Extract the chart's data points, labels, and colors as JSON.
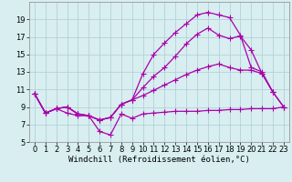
{
  "background_color": "#d8eef0",
  "grid_color": "#aacdd4",
  "line_color": "#aa00aa",
  "line_width": 0.9,
  "marker": "+",
  "marker_size": 4,
  "marker_lw": 0.8,
  "xlabel": "Windchill (Refroidissement éolien,°C)",
  "xlabel_fontsize": 6.5,
  "tick_fontsize": 6,
  "xlim": [
    -0.5,
    23.5
  ],
  "ylim": [
    5,
    21
  ],
  "yticks": [
    5,
    7,
    9,
    11,
    13,
    15,
    17,
    19
  ],
  "xticks": [
    0,
    1,
    2,
    3,
    4,
    5,
    6,
    7,
    8,
    9,
    10,
    11,
    12,
    13,
    14,
    15,
    16,
    17,
    18,
    19,
    20,
    21,
    22,
    23
  ],
  "c1x": [
    0,
    1,
    2,
    3,
    4,
    5,
    6,
    7,
    8,
    9,
    10,
    11,
    12,
    13,
    14,
    15,
    16,
    17,
    18,
    19,
    20,
    21,
    22
  ],
  "c1y": [
    10.5,
    8.3,
    8.8,
    9.0,
    8.2,
    8.0,
    7.5,
    7.8,
    9.3,
    9.8,
    12.8,
    15.0,
    16.3,
    17.5,
    18.5,
    19.5,
    19.8,
    19.5,
    19.2,
    17.2,
    13.5,
    13.0,
    10.7
  ],
  "c2x": [
    0,
    1,
    2,
    3,
    4,
    5,
    6,
    7,
    8,
    9,
    10,
    11,
    12,
    13,
    14,
    15,
    16,
    17,
    18,
    19,
    20,
    21,
    22,
    23
  ],
  "c2y": [
    10.5,
    8.3,
    8.8,
    9.0,
    8.2,
    8.0,
    7.5,
    7.8,
    9.3,
    9.8,
    11.2,
    12.5,
    13.5,
    14.8,
    16.2,
    17.3,
    18.0,
    17.2,
    16.8,
    17.1,
    15.5,
    12.8,
    10.7,
    9.0
  ],
  "c3x": [
    0,
    1,
    2,
    3,
    4,
    5,
    6,
    7,
    8,
    9,
    10,
    11,
    12,
    13,
    14,
    15,
    16,
    17,
    18,
    19,
    20,
    21,
    22,
    23
  ],
  "c3y": [
    10.5,
    8.3,
    8.8,
    9.0,
    8.2,
    8.0,
    7.5,
    7.8,
    9.3,
    9.8,
    10.3,
    10.9,
    11.5,
    12.1,
    12.7,
    13.2,
    13.6,
    13.9,
    13.5,
    13.2,
    13.2,
    12.8,
    10.7,
    9.0
  ],
  "c4x": [
    0,
    1,
    2,
    3,
    4,
    5,
    6,
    7,
    8,
    9,
    10,
    11,
    12,
    13,
    14,
    15,
    16,
    17,
    18,
    19,
    20,
    21,
    22,
    23
  ],
  "c4y": [
    10.5,
    8.3,
    8.8,
    8.3,
    8.0,
    8.0,
    6.2,
    5.8,
    8.2,
    7.7,
    8.2,
    8.3,
    8.4,
    8.5,
    8.5,
    8.5,
    8.6,
    8.6,
    8.7,
    8.7,
    8.8,
    8.8,
    8.8,
    9.0
  ]
}
